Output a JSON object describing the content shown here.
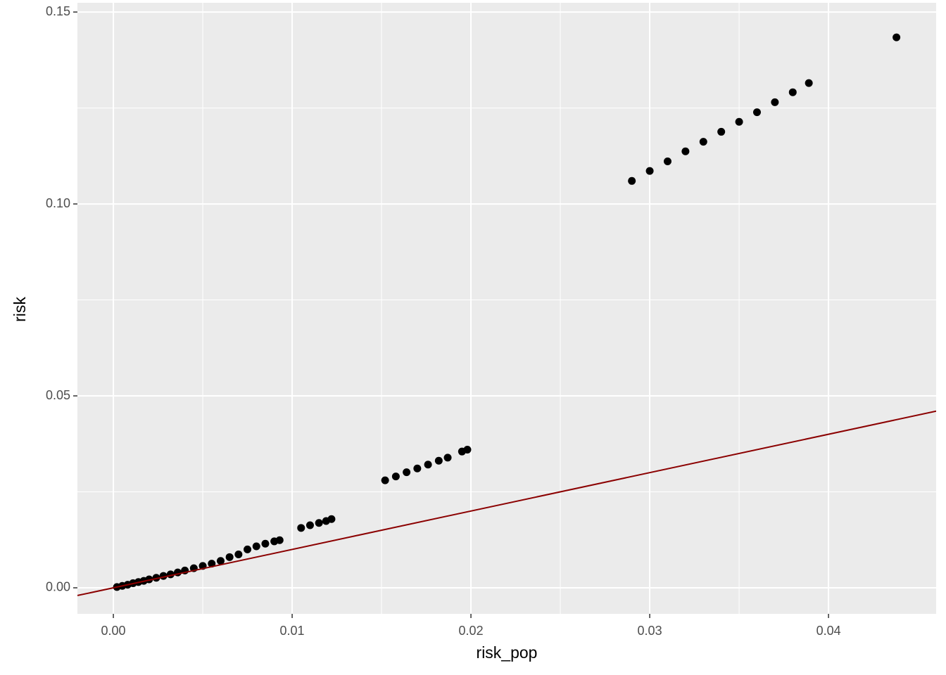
{
  "chart_data": {
    "type": "scatter",
    "x_label": "risk_pop",
    "y_label": "risk",
    "xlim": [
      -0.00201,
      0.04602
    ],
    "ylim": [
      -0.00678,
      0.1524
    ],
    "xticks": [
      {
        "value": 0,
        "label": "0.00"
      },
      {
        "value": 0.01,
        "label": "0.01"
      },
      {
        "value": 0.02,
        "label": "0.02"
      },
      {
        "value": 0.03,
        "label": "0.03"
      },
      {
        "value": 0.04,
        "label": "0.04"
      }
    ],
    "yticks": [
      {
        "value": 0,
        "label": "0.00"
      },
      {
        "value": 0.05,
        "label": "0.05"
      },
      {
        "value": 0.1,
        "label": "0.10"
      },
      {
        "value": 0.15,
        "label": "0.15"
      }
    ],
    "grid": true,
    "color": "#000000",
    "x": [
      0.0002,
      0.0005,
      0.0008,
      0.0011,
      0.0014,
      0.0017,
      0.002,
      0.0024,
      0.0028,
      0.0032,
      0.0036,
      0.004,
      0.0045,
      0.005,
      0.0055,
      0.006,
      0.0065,
      0.007,
      0.0075,
      0.008,
      0.0085,
      0.009,
      0.0093,
      0.0105,
      0.011,
      0.0115,
      0.0119,
      0.0122,
      0.0152,
      0.0158,
      0.0164,
      0.017,
      0.0176,
      0.0182,
      0.0187,
      0.0195,
      0.0198,
      0.029,
      0.03,
      0.031,
      0.032,
      0.033,
      0.034,
      0.035,
      0.036,
      0.037,
      0.038,
      0.0389,
      0.0438
    ],
    "values": [
      0.0002,
      0.0005,
      0.0008,
      0.0012,
      0.0015,
      0.0018,
      0.0022,
      0.0026,
      0.0031,
      0.0035,
      0.004,
      0.0045,
      0.0051,
      0.0057,
      0.0063,
      0.007,
      0.008,
      0.0087,
      0.01,
      0.0108,
      0.0115,
      0.0121,
      0.0124,
      0.0156,
      0.0163,
      0.0169,
      0.0174,
      0.0179,
      0.028,
      0.029,
      0.0301,
      0.0311,
      0.0321,
      0.0331,
      0.0339,
      0.0355,
      0.036,
      0.106,
      0.1086,
      0.1111,
      0.1137,
      0.1162,
      0.1188,
      0.1214,
      0.1239,
      0.1265,
      0.1291,
      0.1315,
      0.1434
    ],
    "reference_line": {
      "slope": 1,
      "intercept": 0,
      "color": "#8b0000"
    }
  }
}
